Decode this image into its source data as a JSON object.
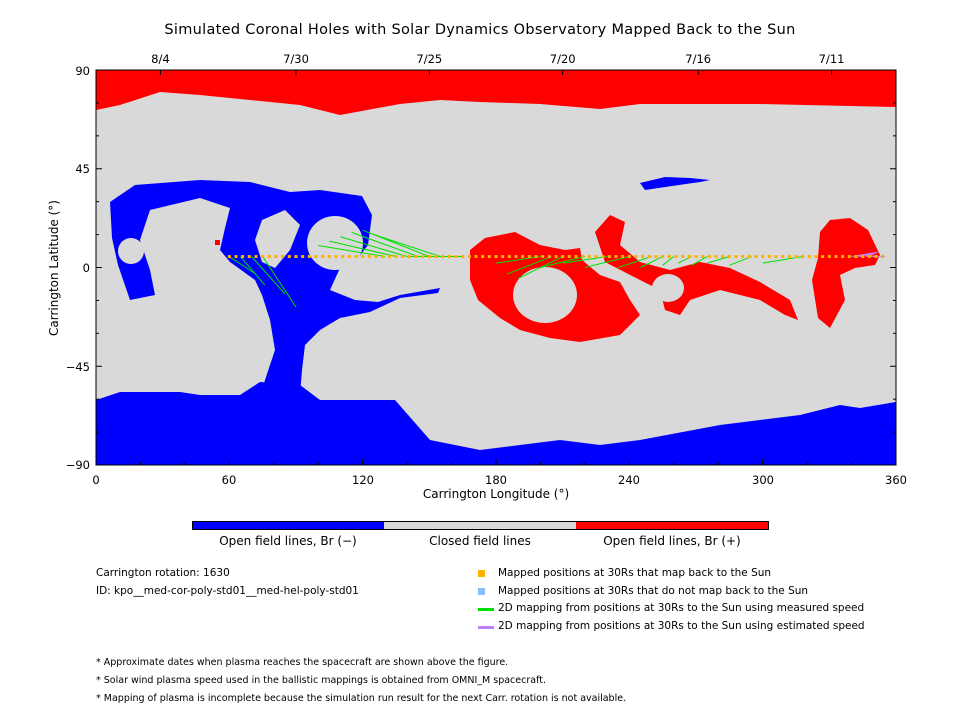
{
  "chart_data": {
    "type": "map",
    "title": "Simulated Coronal Holes with Solar Dynamics Observatory Mapped Back to the Sun",
    "xlabel": "Carrington Longitude (°)",
    "ylabel": "Carrington Latitude (°)",
    "xlim": [
      0,
      360
    ],
    "ylim": [
      -90,
      90
    ],
    "x_ticks": [
      "0",
      "60",
      "120",
      "180",
      "240",
      "300",
      "360"
    ],
    "y_ticks": [
      "90",
      "45",
      "0",
      "−45",
      "−90"
    ],
    "top_axis_dates": [
      {
        "label": "8/4",
        "lon": 29
      },
      {
        "label": "7/30",
        "lon": 90
      },
      {
        "label": "7/25",
        "lon": 150
      },
      {
        "label": "7/20",
        "lon": 210
      },
      {
        "label": "7/16",
        "lon": 271
      },
      {
        "label": "7/11",
        "lon": 331
      }
    ],
    "colors": {
      "open_negative": "#0000ff",
      "closed": "#d9d9d9",
      "open_positive": "#ff0000",
      "mapped_yes": "#ffb000",
      "mapped_no": "#87bfff",
      "measured_speed": "#00e000",
      "estimated_speed": "#c080ff"
    },
    "mapped_positions": {
      "lat": 5,
      "lon_start": 60,
      "lon_end": 356,
      "spacing_deg": 3
    },
    "colorbar_labels": [
      "Open field lines, Br (−)",
      "Closed field lines",
      "Open field lines, Br (+)"
    ]
  },
  "info": {
    "rotation": "Carrington rotation: 1630",
    "id": "ID: kpo__med-cor-poly-std01__med-hel-poly-std01"
  },
  "legend": [
    "Mapped positions at 30Rs that map back to the Sun",
    "Mapped positions at 30Rs that do not map back to the Sun",
    "2D mapping from positions at 30Rs to the Sun using measured speed",
    "2D mapping from positions at 30Rs to the Sun using estimated speed"
  ],
  "notes": [
    "* Approximate dates when plasma reaches the spacecraft are shown above the figure.",
    "* Solar wind plasma speed used in the ballistic mappings is obtained from OMNI_M spacecraft.",
    "* Mapping of plasma is incomplete because the simulation run result for the next Carr. rotation is not available."
  ]
}
